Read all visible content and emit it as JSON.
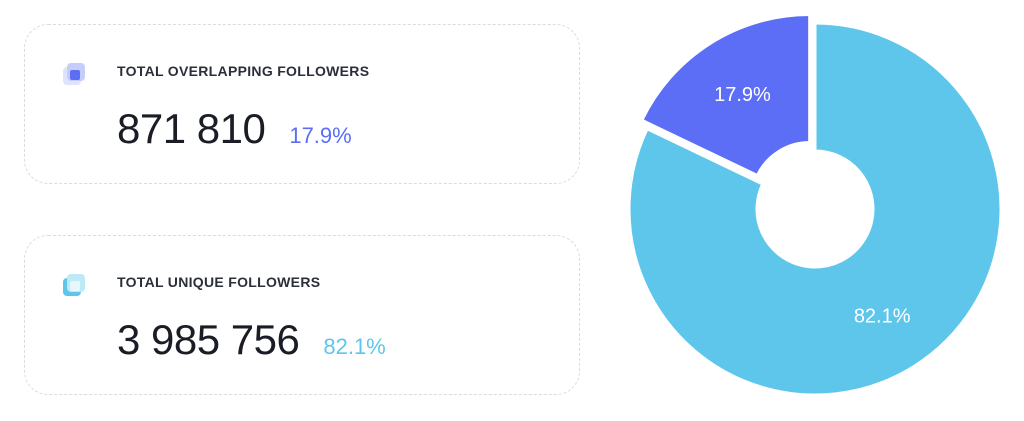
{
  "cards": [
    {
      "label": "TOTAL OVERLAPPING FOLLOWERS",
      "value": "871 810",
      "percent": "17.9%",
      "color": "#5b6ef5",
      "icon": "overlapping-squares-icon"
    },
    {
      "label": "TOTAL UNIQUE FOLLOWERS",
      "value": "3 985 756",
      "percent": "82.1%",
      "color": "#5ec6ea",
      "icon": "unique-squares-icon"
    }
  ],
  "chart_data": {
    "type": "pie",
    "donut": true,
    "start_angle_deg": 0,
    "slices": [
      {
        "label": "17.9%",
        "value": 17.9,
        "color": "#5b6ef5",
        "exploded": true
      },
      {
        "label": "82.1%",
        "value": 82.1,
        "color": "#5ec6ea",
        "exploded": false
      }
    ],
    "title": "",
    "legend": "none"
  }
}
